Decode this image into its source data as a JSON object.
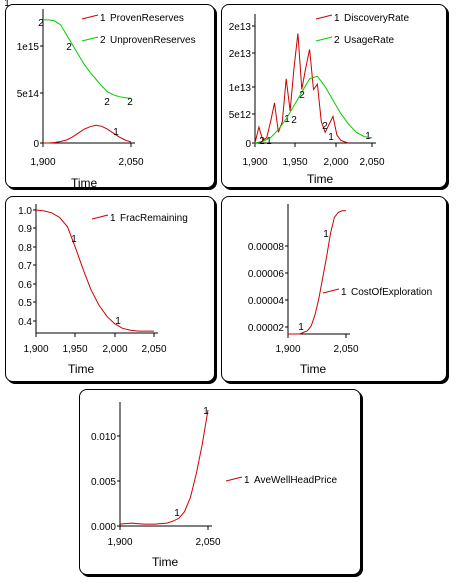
{
  "chart_data": [
    {
      "type": "line",
      "xlabel": "Time",
      "x_ticks": [
        "1,900",
        "2,050"
      ],
      "y_ticks": [
        "0",
        "5e14",
        "1e15"
      ],
      "xlim": [
        1900,
        2050
      ],
      "ylim": [
        0,
        1300000000000000
      ],
      "series": [
        {
          "name": "ProvenReserves",
          "marker": "1",
          "color": "#cc0000",
          "x": [
            1900,
            1910,
            1920,
            1930,
            1940,
            1950,
            1960,
            1970,
            1980,
            1990,
            2000,
            2010,
            2020,
            2030,
            2040,
            2050
          ],
          "y": [
            0,
            0,
            5000000000000,
            15000000000000,
            30000000000000,
            60000000000000,
            100000000000000,
            140000000000000,
            165000000000000,
            180000000000000,
            170000000000000,
            140000000000000,
            100000000000000,
            60000000000000,
            30000000000000,
            10000000000000
          ]
        },
        {
          "name": "UnprovenReserves",
          "marker": "2",
          "color": "#00cc00",
          "x": [
            1900,
            1910,
            1920,
            1930,
            1940,
            1950,
            1960,
            1970,
            1980,
            1990,
            2000,
            2010,
            2020,
            2030,
            2040,
            2050
          ],
          "y": [
            1250000000000000,
            1250000000000000,
            1240000000000000,
            1200000000000000,
            1100000000000000,
            1000000000000000,
            900000000000000,
            800000000000000,
            720000000000000,
            650000000000000,
            580000000000000,
            520000000000000,
            490000000000000,
            470000000000000,
            460000000000000,
            455000000000000
          ]
        }
      ]
    },
    {
      "type": "line",
      "xlabel": "Time",
      "x_ticks": [
        "1,900",
        "1,950",
        "2,000",
        "2,050"
      ],
      "y_ticks": [
        "0",
        "5e12",
        "1e13",
        "2e13",
        "2e13"
      ],
      "xlim": [
        1900,
        2050
      ],
      "ylim": [
        0,
        23000000000000
      ],
      "series": [
        {
          "name": "DiscoveryRate",
          "marker": "1",
          "color": "#cc0000",
          "x": [
            1900,
            1905,
            1910,
            1915,
            1920,
            1925,
            1930,
            1935,
            1940,
            1945,
            1950,
            1955,
            1960,
            1965,
            1970,
            1975,
            1980,
            1985,
            1990,
            1995,
            2000,
            2005,
            2010,
            2015,
            2020
          ],
          "y": [
            0,
            3000000000000,
            500000000000,
            1000000000000,
            4000000000000,
            7500000000000,
            2000000000000,
            4000000000000,
            12000000000000,
            6000000000000,
            14000000000000,
            20500000000000,
            10000000000000,
            14000000000000,
            17500000000000,
            10000000000000,
            11000000000000,
            4000000000000,
            2000000000000,
            3500000000000,
            5000000000000,
            1500000000000,
            500000000000,
            200000000000,
            0
          ]
        },
        {
          "name": "UsageRate",
          "marker": "2",
          "color": "#00cc00",
          "x": [
            1900,
            1910,
            1920,
            1930,
            1940,
            1950,
            1960,
            1970,
            1980,
            1990,
            2000,
            2010,
            2020,
            2030,
            2040,
            2050
          ],
          "y": [
            0,
            300000000000,
            1000000000000,
            2500000000000,
            4500000000000,
            7000000000000,
            9500000000000,
            12000000000000,
            12500000000000,
            10500000000000,
            8000000000000,
            5500000000000,
            3500000000000,
            2000000000000,
            1200000000000,
            1000000000000
          ]
        }
      ]
    },
    {
      "type": "line",
      "xlabel": "Time",
      "x_ticks": [
        "1,900",
        "1,950",
        "2,000",
        "2,050"
      ],
      "y_ticks": [
        "0.4",
        "0.5",
        "0.6",
        "0.7",
        "0.8",
        "0.9",
        "1.0"
      ],
      "xlim": [
        1900,
        2050
      ],
      "ylim": [
        0.34,
        1.0
      ],
      "series": [
        {
          "name": "FracRemaining",
          "marker": "1",
          "color": "#cc0000",
          "x": [
            1900,
            1910,
            1920,
            1930,
            1940,
            1950,
            1960,
            1970,
            1980,
            1990,
            2000,
            2010,
            2020,
            2030,
            2040,
            2050
          ],
          "y": [
            1.0,
            0.995,
            0.985,
            0.96,
            0.91,
            0.8,
            0.68,
            0.57,
            0.49,
            0.43,
            0.39,
            0.365,
            0.355,
            0.35,
            0.35,
            0.35
          ]
        }
      ]
    },
    {
      "type": "line",
      "xlabel": "Time",
      "x_ticks": [
        "1,900",
        "2,050"
      ],
      "y_ticks": [
        "0.00002",
        "0.00004",
        "0.00006",
        "0.00008"
      ],
      "xlim": [
        1900,
        2050
      ],
      "ylim": [
        2e-05,
        9.65e-05
      ],
      "series": [
        {
          "name": "CostOfExploration",
          "marker": "1",
          "color": "#cc0000",
          "x": [
            1900,
            1910,
            1920,
            1930,
            1940,
            1950,
            1960,
            1970,
            1980,
            1990,
            2000,
            2010,
            2020,
            2030,
            2040,
            2050
          ],
          "y": [
            2e-05,
            2e-05,
            2e-05,
            2e-05,
            2.1e-05,
            2.2e-05,
            2.5e-05,
            3.2e-05,
            4.2e-05,
            5.5e-05,
            6.8e-05,
            8.2e-05,
            9.2e-05,
            9.5e-05,
            9.6e-05,
            9.6e-05
          ]
        }
      ]
    },
    {
      "type": "line",
      "xlabel": "Time",
      "x_ticks": [
        "1,900",
        "2,050"
      ],
      "y_ticks": [
        "0.000",
        "0.005",
        "0.010"
      ],
      "xlim": [
        1900,
        2050
      ],
      "ylim": [
        0,
        0.0124
      ],
      "series": [
        {
          "name": "AveWellHeadPrice",
          "marker": "1",
          "color": "#cc0000",
          "x": [
            1900,
            1920,
            1940,
            1960,
            1980,
            1990,
            2000,
            2010,
            2020,
            2030,
            2040,
            2050
          ],
          "y": [
            0.0002,
            0.0003,
            0.0002,
            0.0002,
            0.0003,
            0.0005,
            0.0008,
            0.0015,
            0.003,
            0.0055,
            0.0085,
            0.0122
          ]
        }
      ]
    }
  ]
}
